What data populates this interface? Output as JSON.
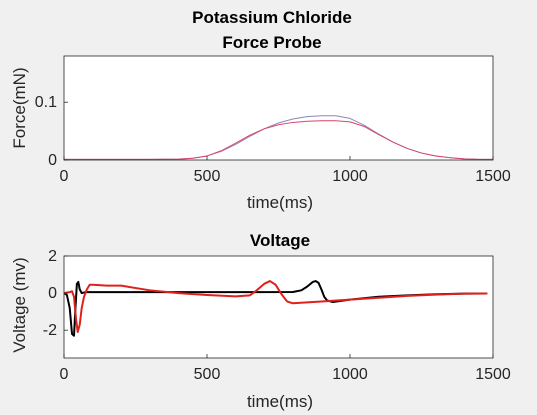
{
  "chart_data": [
    {
      "type": "line",
      "title": [
        "Potassium Chloride",
        "Force Probe"
      ],
      "xlabel": "time(ms)",
      "ylabel": "Force(mN)",
      "xlim": [
        0,
        1500
      ],
      "ylim": [
        0,
        0.18
      ],
      "xticks": [
        0,
        500,
        1000,
        1500
      ],
      "yticks": [
        0,
        0.1
      ],
      "grid": false,
      "series": [
        {
          "color": "#8c86b8",
          "x": [
            0,
            300,
            400,
            450,
            500,
            550,
            600,
            650,
            700,
            750,
            800,
            850,
            900,
            950,
            1000,
            1050,
            1100,
            1150,
            1200,
            1250,
            1300,
            1350,
            1400,
            1450,
            1500
          ],
          "y": [
            0.001,
            0.001,
            0.0015,
            0.003,
            0.007,
            0.015,
            0.027,
            0.041,
            0.054,
            0.064,
            0.071,
            0.075,
            0.0765,
            0.0765,
            0.072,
            0.06,
            0.045,
            0.031,
            0.02,
            0.012,
            0.007,
            0.004,
            0.002,
            0.001,
            0.001
          ]
        },
        {
          "color": "#d9456a",
          "x": [
            0,
            300,
            400,
            450,
            500,
            550,
            600,
            650,
            700,
            750,
            800,
            850,
            900,
            950,
            1000,
            1050,
            1100,
            1150,
            1200,
            1250,
            1300,
            1350,
            1400,
            1450,
            1500
          ],
          "y": [
            0.001,
            0.001,
            0.0015,
            0.003,
            0.007,
            0.016,
            0.029,
            0.043,
            0.054,
            0.061,
            0.065,
            0.067,
            0.068,
            0.068,
            0.066,
            0.058,
            0.044,
            0.031,
            0.02,
            0.012,
            0.007,
            0.004,
            0.002,
            0.001,
            0.001
          ]
        }
      ]
    },
    {
      "type": "line",
      "title": "Voltage",
      "xlabel": "time(ms)",
      "ylabel": "Voltage (mv)",
      "xlim": [
        0,
        1500
      ],
      "ylim": [
        -3.5,
        2
      ],
      "xticks": [
        0,
        500,
        1000,
        1500
      ],
      "yticks": [
        -2,
        0,
        2
      ],
      "grid": false,
      "series": [
        {
          "color": "#000000",
          "x": [
            0,
            10,
            20,
            28,
            35,
            40,
            45,
            50,
            55,
            62,
            75,
            100,
            200,
            400,
            600,
            800,
            830,
            850,
            870,
            880,
            890,
            900,
            910,
            920,
            940,
            1000,
            1100,
            1200,
            1300,
            1400,
            1480
          ],
          "y": [
            0,
            -0.1,
            -0.8,
            -2.2,
            -2.3,
            -0.8,
            0.5,
            0.6,
            0.2,
            0,
            0.05,
            0.05,
            0.05,
            0.05,
            0.05,
            0.06,
            0.15,
            0.35,
            0.6,
            0.65,
            0.55,
            0.2,
            -0.2,
            -0.4,
            -0.48,
            -0.35,
            -0.2,
            -0.12,
            -0.06,
            -0.03,
            -0.02
          ]
        },
        {
          "color": "#e0201a",
          "x": [
            0,
            20,
            28,
            35,
            42,
            48,
            55,
            62,
            70,
            80,
            90,
            100,
            150,
            200,
            300,
            400,
            500,
            600,
            650,
            670,
            700,
            720,
            740,
            760,
            780,
            800,
            850,
            900,
            1000,
            1100,
            1200,
            1300,
            1400,
            1480
          ],
          "y": [
            0,
            0.05,
            0.1,
            -0.2,
            -1.4,
            -2.1,
            -1.7,
            -0.8,
            -0.2,
            0.2,
            0.45,
            0.45,
            0.4,
            0.4,
            0.15,
            0.0,
            -0.1,
            -0.18,
            -0.12,
            0.1,
            0.5,
            0.65,
            0.45,
            -0.05,
            -0.45,
            -0.55,
            -0.5,
            -0.45,
            -0.35,
            -0.25,
            -0.15,
            -0.08,
            -0.03,
            -0.02
          ]
        }
      ]
    }
  ]
}
